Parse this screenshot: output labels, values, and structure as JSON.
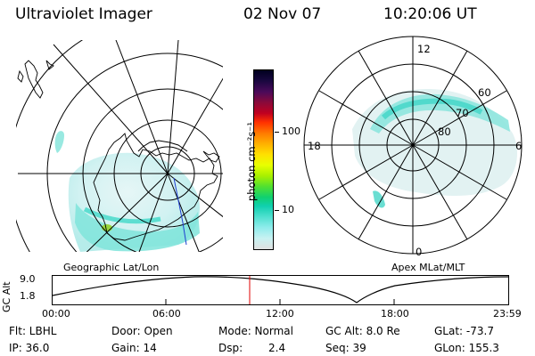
{
  "header": {
    "instrument": "Ultraviolet Imager",
    "date": "02 Nov 07",
    "time": "10:20:06 UT"
  },
  "geo_panel": {
    "label": "Geographic Lat/Lon"
  },
  "apex_panel": {
    "label": "Apex MLat/MLT",
    "mlt_labels": {
      "top": "12",
      "bottom": "0",
      "left": "18",
      "right": "6"
    },
    "lat_labels": [
      "60",
      "70",
      "80"
    ]
  },
  "colorbar": {
    "unit": "photon cm⁻²s⁻¹",
    "ticks": [
      "100",
      "10"
    ],
    "colors": [
      "#000020",
      "#1a0840",
      "#4a0a5a",
      "#8a0a3a",
      "#c00020",
      "#ff3000",
      "#ff7800",
      "#ffb000",
      "#ffe000",
      "#e8ff00",
      "#a8f000",
      "#50e030",
      "#10d070",
      "#10d0b0",
      "#50e0d0",
      "#90ecec",
      "#c8f2f2",
      "#e0e0e0"
    ]
  },
  "altitude_timeline": {
    "ylabel": "GC Alt",
    "ymax_label": "9.0",
    "ymin_label": "1.8",
    "xticks": [
      "00:00",
      "06:00",
      "12:00",
      "18:00",
      "23:59"
    ],
    "marker_color": "#e00000"
  },
  "info": {
    "filter": "Flt: LBHL",
    "ip": "IP: 36.0",
    "door": "Door: Open",
    "gain": "Gain: 14",
    "mode": "Mode: Normal",
    "dsp_label": "Dsp:",
    "dsp_value": "2.4",
    "gc_alt": "GC Alt: 8.0 Re",
    "seq": "Seq: 39",
    "glat": "GLat: -73.7",
    "glon": "GLon: 155.3"
  },
  "colors": {
    "aurora_light": "#c8f0ee",
    "aurora_mid": "#60e0d0",
    "aurora_strong": "#20d0c0",
    "green_blob": "#9ad020"
  }
}
